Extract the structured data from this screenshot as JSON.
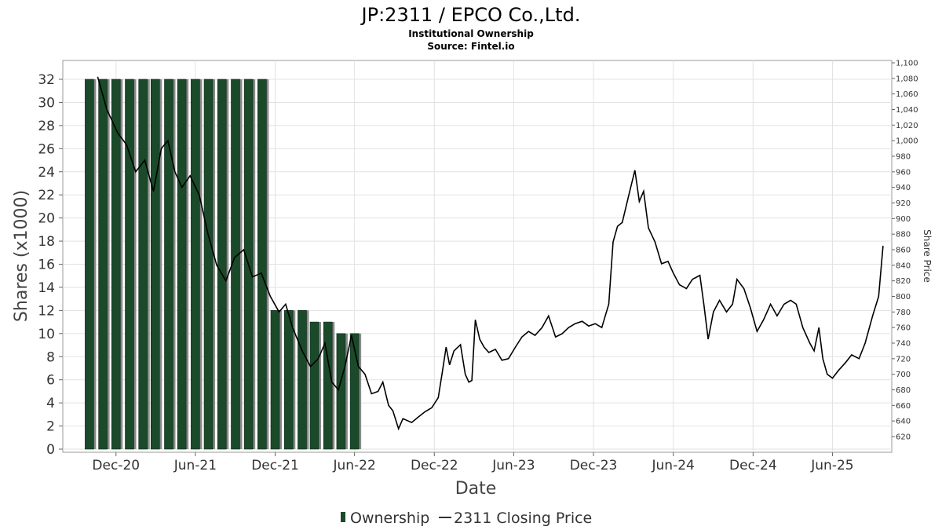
{
  "chart_data": {
    "type": "bar",
    "title": "JP:2311 / EPCO Co.,Ltd.",
    "subtitle": "Institutional Ownership",
    "source": "Source: Fintel.io",
    "xlabel": "Date",
    "ylabel": "Shares (x1000)",
    "y2label": "Share Price",
    "ylim": [
      0,
      33
    ],
    "y2lim": [
      610,
      1100
    ],
    "xlim": [
      "2020-08-01",
      "2025-10-15"
    ],
    "grid": true,
    "legend_position": "bottom",
    "yticks": [
      "0",
      "2",
      "4",
      "6",
      "8",
      "10",
      "12",
      "14",
      "16",
      "18",
      "20",
      "22",
      "24",
      "26",
      "28",
      "30",
      "32"
    ],
    "y2ticks": [
      "620",
      "640",
      "660",
      "680",
      "700",
      "720",
      "740",
      "760",
      "780",
      "800",
      "820",
      "840",
      "860",
      "880",
      "900",
      "920",
      "940",
      "960",
      "980",
      "1,000",
      "1,020",
      "1,040",
      "1,060",
      "1,080",
      "1,100"
    ],
    "xticks": [
      {
        "date": "2020-12-01",
        "label": "Dec-20"
      },
      {
        "date": "2021-06-01",
        "label": "Jun-21"
      },
      {
        "date": "2021-12-01",
        "label": "Dec-21"
      },
      {
        "date": "2022-06-01",
        "label": "Jun-22"
      },
      {
        "date": "2022-12-01",
        "label": "Dec-22"
      },
      {
        "date": "2023-06-01",
        "label": "Jun-23"
      },
      {
        "date": "2023-12-01",
        "label": "Dec-23"
      },
      {
        "date": "2024-06-01",
        "label": "Jun-24"
      },
      {
        "date": "2024-12-01",
        "label": "Dec-24"
      },
      {
        "date": "2025-06-01",
        "label": "Jun-25"
      }
    ],
    "ownership": {
      "name": "Ownership",
      "color": "#1a4a2a",
      "dates": [
        "2020-10-01",
        "2020-11-01",
        "2020-12-01",
        "2021-01-01",
        "2021-02-01",
        "2021-03-01",
        "2021-04-01",
        "2021-05-01",
        "2021-06-01",
        "2021-07-01",
        "2021-08-01",
        "2021-09-01",
        "2021-10-01",
        "2021-11-01",
        "2021-12-01",
        "2022-01-01",
        "2022-02-01",
        "2022-03-01",
        "2022-04-01",
        "2022-05-01",
        "2022-06-01"
      ],
      "values": [
        32,
        32,
        32,
        32,
        32,
        32,
        32,
        32,
        32,
        32,
        32,
        32,
        32,
        32,
        12,
        12,
        12,
        11,
        11,
        10,
        10
      ]
    },
    "price": {
      "name": "2311 Closing Price",
      "color": "#000000",
      "points": [
        [
          "2020-10-20",
          1082
        ],
        [
          "2020-11-10",
          1040
        ],
        [
          "2020-12-05",
          1010
        ],
        [
          "2020-12-25",
          995
        ],
        [
          "2021-01-15",
          960
        ],
        [
          "2021-02-05",
          975
        ],
        [
          "2021-02-25",
          935
        ],
        [
          "2021-03-15",
          990
        ],
        [
          "2021-03-30",
          1000
        ],
        [
          "2021-04-15",
          960
        ],
        [
          "2021-05-01",
          940
        ],
        [
          "2021-05-20",
          955
        ],
        [
          "2021-06-10",
          930
        ],
        [
          "2021-06-30",
          880
        ],
        [
          "2021-07-20",
          840
        ],
        [
          "2021-08-10",
          820
        ],
        [
          "2021-08-30",
          850
        ],
        [
          "2021-09-20",
          860
        ],
        [
          "2021-10-10",
          825
        ],
        [
          "2021-10-30",
          830
        ],
        [
          "2021-11-20",
          800
        ],
        [
          "2021-12-10",
          780
        ],
        [
          "2021-12-25",
          790
        ],
        [
          "2022-01-10",
          760
        ],
        [
          "2022-02-01",
          730
        ],
        [
          "2022-02-20",
          710
        ],
        [
          "2022-03-10",
          720
        ],
        [
          "2022-03-25",
          740
        ],
        [
          "2022-04-10",
          690
        ],
        [
          "2022-04-25",
          680
        ],
        [
          "2022-05-10",
          710
        ],
        [
          "2022-05-25",
          750
        ],
        [
          "2022-06-10",
          710
        ],
        [
          "2022-06-25",
          700
        ],
        [
          "2022-07-10",
          675
        ],
        [
          "2022-07-25",
          678
        ],
        [
          "2022-08-05",
          690
        ],
        [
          "2022-08-18",
          660
        ],
        [
          "2022-08-28",
          653
        ],
        [
          "2022-09-10",
          630
        ],
        [
          "2022-09-20",
          643
        ],
        [
          "2022-10-10",
          638
        ],
        [
          "2022-10-25",
          645
        ],
        [
          "2022-11-10",
          652
        ],
        [
          "2022-11-25",
          657
        ],
        [
          "2022-12-10",
          670
        ],
        [
          "2022-12-20",
          705
        ],
        [
          "2022-12-28",
          735
        ],
        [
          "2023-01-05",
          712
        ],
        [
          "2023-01-15",
          730
        ],
        [
          "2023-01-30",
          738
        ],
        [
          "2023-02-10",
          700
        ],
        [
          "2023-02-18",
          690
        ],
        [
          "2023-02-25",
          692
        ],
        [
          "2023-03-05",
          770
        ],
        [
          "2023-03-15",
          745
        ],
        [
          "2023-03-25",
          735
        ],
        [
          "2023-04-05",
          728
        ],
        [
          "2023-04-20",
          732
        ],
        [
          "2023-05-05",
          718
        ],
        [
          "2023-05-20",
          720
        ],
        [
          "2023-06-05",
          735
        ],
        [
          "2023-06-20",
          748
        ],
        [
          "2023-07-05",
          755
        ],
        [
          "2023-07-20",
          750
        ],
        [
          "2023-08-05",
          760
        ],
        [
          "2023-08-20",
          775
        ],
        [
          "2023-09-05",
          748
        ],
        [
          "2023-09-20",
          752
        ],
        [
          "2023-10-05",
          760
        ],
        [
          "2023-10-20",
          765
        ],
        [
          "2023-11-05",
          768
        ],
        [
          "2023-11-20",
          762
        ],
        [
          "2023-12-05",
          765
        ],
        [
          "2023-12-20",
          760
        ],
        [
          "2024-01-05",
          790
        ],
        [
          "2024-01-15",
          870
        ],
        [
          "2024-01-25",
          890
        ],
        [
          "2024-02-05",
          895
        ],
        [
          "2024-02-20",
          930
        ],
        [
          "2024-03-05",
          962
        ],
        [
          "2024-03-15",
          922
        ],
        [
          "2024-03-25",
          935
        ],
        [
          "2024-04-05",
          888
        ],
        [
          "2024-04-20",
          870
        ],
        [
          "2024-05-05",
          842
        ],
        [
          "2024-05-20",
          845
        ],
        [
          "2024-06-01",
          830
        ],
        [
          "2024-06-15",
          815
        ],
        [
          "2024-07-01",
          810
        ],
        [
          "2024-07-15",
          822
        ],
        [
          "2024-08-01",
          827
        ],
        [
          "2024-08-10",
          790
        ],
        [
          "2024-08-20",
          745
        ],
        [
          "2024-09-01",
          780
        ],
        [
          "2024-09-15",
          795
        ],
        [
          "2024-10-01",
          780
        ],
        [
          "2024-10-15",
          790
        ],
        [
          "2024-10-25",
          822
        ],
        [
          "2024-11-10",
          810
        ],
        [
          "2024-11-25",
          785
        ],
        [
          "2024-12-10",
          755
        ],
        [
          "2024-12-25",
          770
        ],
        [
          "2025-01-10",
          790
        ],
        [
          "2025-01-25",
          775
        ],
        [
          "2025-02-10",
          790
        ],
        [
          "2025-02-25",
          795
        ],
        [
          "2025-03-10",
          790
        ],
        [
          "2025-03-25",
          760
        ],
        [
          "2025-04-10",
          740
        ],
        [
          "2025-04-20",
          730
        ],
        [
          "2025-05-01",
          760
        ],
        [
          "2025-05-10",
          720
        ],
        [
          "2025-05-20",
          700
        ],
        [
          "2025-06-01",
          695
        ],
        [
          "2025-06-15",
          705
        ],
        [
          "2025-07-01",
          715
        ],
        [
          "2025-07-15",
          725
        ],
        [
          "2025-08-01",
          720
        ],
        [
          "2025-08-15",
          740
        ],
        [
          "2025-09-01",
          775
        ],
        [
          "2025-09-15",
          800
        ],
        [
          "2025-09-25",
          865
        ]
      ]
    }
  }
}
